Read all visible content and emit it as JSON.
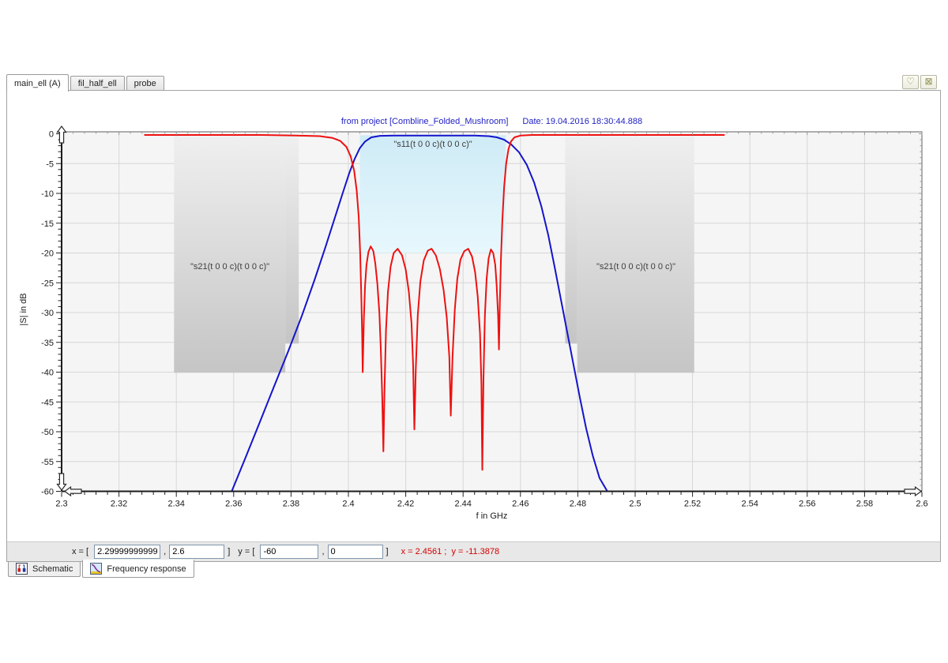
{
  "window": {
    "top_tabs": [
      {
        "label": "main_ell (A)",
        "active": true
      },
      {
        "label": "fil_half_ell",
        "active": false
      },
      {
        "label": "probe",
        "active": false
      }
    ],
    "corner_buttons": [
      {
        "name": "favorite",
        "glyph": "♡"
      },
      {
        "name": "close-all",
        "glyph": "⊠"
      }
    ]
  },
  "plot": {
    "title_source": "from project [Combline_Folded_Mushroom]",
    "title_date": "Date: 19.04.2016 18:30:44.888",
    "s11_box_label": "\"s11(t 0 0 c)(t 0 0 c)\"",
    "s21_box_label": "\"s21(t 0 0 c)(t 0 0 c)\""
  },
  "chart_data": {
    "type": "line",
    "xlabel": "f in GHz",
    "ylabel": "|S| in dB",
    "xlim": [
      2.3,
      2.6
    ],
    "ylim": [
      -60,
      0
    ],
    "grid": true,
    "x_minor_step": 0.004,
    "y_minor_step": 1,
    "x_major_ticks": [
      {
        "v": 2.3,
        "label": "2.3"
      },
      {
        "v": 2.32,
        "label": "2.32"
      },
      {
        "v": 2.34,
        "label": "2.34"
      },
      {
        "v": 2.36,
        "label": "2.36"
      },
      {
        "v": 2.38,
        "label": "2.38"
      },
      {
        "v": 2.4,
        "label": "2.4"
      },
      {
        "v": 2.42,
        "label": "2.42"
      },
      {
        "v": 2.44,
        "label": "2.44"
      },
      {
        "v": 2.46,
        "label": "2.46"
      },
      {
        "v": 2.48,
        "label": "2.48"
      },
      {
        "v": 2.5,
        "label": "2.5"
      },
      {
        "v": 2.52,
        "label": "2.52"
      },
      {
        "v": 2.54,
        "label": "2.54"
      },
      {
        "v": 2.56,
        "label": "2.56"
      },
      {
        "v": 2.58,
        "label": "2.58"
      },
      {
        "v": 2.6,
        "label": "2.6"
      }
    ],
    "y_major_ticks": [
      {
        "v": 0,
        "label": "0"
      },
      {
        "v": -5,
        "label": "-5"
      },
      {
        "v": -10,
        "label": "-10"
      },
      {
        "v": -15,
        "label": "-15"
      },
      {
        "v": -20,
        "label": "-20"
      },
      {
        "v": -25,
        "label": "-25"
      },
      {
        "v": -30,
        "label": "-30"
      },
      {
        "v": -35,
        "label": "-35"
      },
      {
        "v": -40,
        "label": "-40"
      },
      {
        "v": -45,
        "label": "-45"
      },
      {
        "v": -50,
        "label": "-50"
      },
      {
        "v": -55,
        "label": "-55"
      },
      {
        "v": -60,
        "label": "-60"
      }
    ],
    "spec_boxes": [
      {
        "id": "passband-s11-spec",
        "fill": "cyan",
        "f": [
          2.404,
          2.4549
        ],
        "db": [
          -0.25,
          -20
        ]
      },
      {
        "id": "stopband-left-main",
        "fill": "gray",
        "f": [
          2.3392,
          2.378
        ],
        "db": [
          -0.45,
          -40.1
        ]
      },
      {
        "id": "stopband-left-edge",
        "fill": "gray",
        "f": [
          2.378,
          2.3827
        ],
        "db": [
          -0.45,
          -35.2
        ]
      },
      {
        "id": "stopband-right-edge",
        "fill": "gray",
        "f": [
          2.4756,
          2.4798
        ],
        "db": [
          -0.45,
          -35.2
        ]
      },
      {
        "id": "stopband-right-main",
        "fill": "gray",
        "f": [
          2.4798,
          2.5206
        ],
        "db": [
          -0.45,
          -40.1
        ]
      }
    ],
    "series": [
      {
        "name": "s21 transmission",
        "color": "#1414cc",
        "width": 2,
        "points": [
          [
            2.3593,
            -60
          ],
          [
            2.364,
            -54.5
          ],
          [
            2.369,
            -48.5
          ],
          [
            2.374,
            -42.5
          ],
          [
            2.379,
            -36.5
          ],
          [
            2.3838,
            -30.5
          ],
          [
            2.3882,
            -24.5
          ],
          [
            2.392,
            -19
          ],
          [
            2.3952,
            -14.2
          ],
          [
            2.398,
            -10
          ],
          [
            2.4003,
            -6.6
          ],
          [
            2.4022,
            -4.2
          ],
          [
            2.404,
            -2.4
          ],
          [
            2.4058,
            -1.3
          ],
          [
            2.408,
            -0.6
          ],
          [
            2.411,
            -0.35
          ],
          [
            2.416,
            -0.3
          ],
          [
            2.425,
            -0.3
          ],
          [
            2.435,
            -0.3
          ],
          [
            2.444,
            -0.3
          ],
          [
            2.449,
            -0.4
          ],
          [
            2.4518,
            -0.6
          ],
          [
            2.4543,
            -1
          ],
          [
            2.4568,
            -1.8
          ],
          [
            2.4595,
            -3.1
          ],
          [
            2.4622,
            -5.2
          ],
          [
            2.4648,
            -8.2
          ],
          [
            2.4673,
            -12.2
          ],
          [
            2.4697,
            -17
          ],
          [
            2.4719,
            -22.3
          ],
          [
            2.4741,
            -27.8
          ],
          [
            2.4763,
            -33.3
          ],
          [
            2.4785,
            -38.8
          ],
          [
            2.4807,
            -44.2
          ],
          [
            2.4829,
            -49.4
          ],
          [
            2.4852,
            -54
          ],
          [
            2.4876,
            -57.8
          ],
          [
            2.4903,
            -60
          ]
        ]
      },
      {
        "name": "s11 reflection",
        "color": "#ee1111",
        "width": 2,
        "points": [
          [
            2.329,
            -0.2
          ],
          [
            2.34,
            -0.2
          ],
          [
            2.355,
            -0.2
          ],
          [
            2.37,
            -0.2
          ],
          [
            2.382,
            -0.3
          ],
          [
            2.39,
            -0.4
          ],
          [
            2.3945,
            -0.7
          ],
          [
            2.3972,
            -1.2
          ],
          [
            2.3993,
            -2.2
          ],
          [
            2.4008,
            -3.8
          ],
          [
            2.402,
            -6.2
          ],
          [
            2.4029,
            -9.5
          ],
          [
            2.4036,
            -14
          ],
          [
            2.4041,
            -20
          ],
          [
            2.4045,
            -27
          ],
          [
            2.4048,
            -33.5
          ],
          [
            2.405,
            -40
          ],
          [
            2.4054,
            -31
          ],
          [
            2.4058,
            -25.5
          ],
          [
            2.4063,
            -22
          ],
          [
            2.407,
            -19.8
          ],
          [
            2.4078,
            -18.9
          ],
          [
            2.4087,
            -19.7
          ],
          [
            2.4094,
            -21.8
          ],
          [
            2.4101,
            -25.2
          ],
          [
            2.4108,
            -30
          ],
          [
            2.4113,
            -36
          ],
          [
            2.4118,
            -44
          ],
          [
            2.4122,
            -53.3
          ],
          [
            2.4126,
            -43
          ],
          [
            2.4131,
            -33
          ],
          [
            2.4138,
            -26.5
          ],
          [
            2.4147,
            -22.3
          ],
          [
            2.4158,
            -20
          ],
          [
            2.4172,
            -19.3
          ],
          [
            2.4187,
            -20.4
          ],
          [
            2.42,
            -22.8
          ],
          [
            2.4211,
            -26.6
          ],
          [
            2.422,
            -31.8
          ],
          [
            2.4226,
            -39
          ],
          [
            2.423,
            -49.6
          ],
          [
            2.4235,
            -39.5
          ],
          [
            2.4242,
            -30.5
          ],
          [
            2.4251,
            -24.8
          ],
          [
            2.4263,
            -21.2
          ],
          [
            2.4277,
            -19.6
          ],
          [
            2.429,
            -19.3
          ],
          [
            2.4305,
            -20.4
          ],
          [
            2.4319,
            -22.7
          ],
          [
            2.4332,
            -26.2
          ],
          [
            2.4343,
            -30.8
          ],
          [
            2.4352,
            -37.5
          ],
          [
            2.4357,
            -47.3
          ],
          [
            2.4363,
            -37.5
          ],
          [
            2.4371,
            -29.5
          ],
          [
            2.438,
            -24.3
          ],
          [
            2.4391,
            -21.1
          ],
          [
            2.4404,
            -19.7
          ],
          [
            2.4418,
            -19.3
          ],
          [
            2.4431,
            -20.6
          ],
          [
            2.4442,
            -23.2
          ],
          [
            2.4451,
            -27.3
          ],
          [
            2.4459,
            -33.5
          ],
          [
            2.4464,
            -42
          ],
          [
            2.4467,
            -56.4
          ],
          [
            2.4471,
            -41
          ],
          [
            2.4476,
            -30.5
          ],
          [
            2.4482,
            -24.3
          ],
          [
            2.4489,
            -20.9
          ],
          [
            2.4497,
            -19.4
          ],
          [
            2.4505,
            -20
          ],
          [
            2.4512,
            -22
          ],
          [
            2.4517,
            -25.5
          ],
          [
            2.4522,
            -30.5
          ],
          [
            2.4525,
            -36.2
          ],
          [
            2.4528,
            -28.5
          ],
          [
            2.4532,
            -21
          ],
          [
            2.4537,
            -14.5
          ],
          [
            2.4543,
            -9
          ],
          [
            2.455,
            -5
          ],
          [
            2.4558,
            -2.6
          ],
          [
            2.4567,
            -1.3
          ],
          [
            2.4579,
            -0.6
          ],
          [
            2.46,
            -0.3
          ],
          [
            2.464,
            -0.2
          ],
          [
            2.475,
            -0.2
          ],
          [
            2.49,
            -0.2
          ],
          [
            2.51,
            -0.2
          ],
          [
            2.525,
            -0.2
          ],
          [
            2.531,
            -0.2
          ]
        ]
      }
    ]
  },
  "coord_bar": {
    "x_prefix": "x = [ ",
    "comma": ",",
    "x_close": "]",
    "y_prefix": "y = [ ",
    "y_close": "]",
    "inputs": {
      "x_min": "2.29999999999999",
      "x_max": "2.6",
      "y_min": "-60",
      "y_max": "0"
    },
    "cursor_readout": "x = 2.4561 ;  y = -11.3878"
  },
  "bottom_tabs": [
    {
      "label": "Schematic",
      "active": false
    },
    {
      "label": "Frequency response",
      "active": true
    }
  ]
}
